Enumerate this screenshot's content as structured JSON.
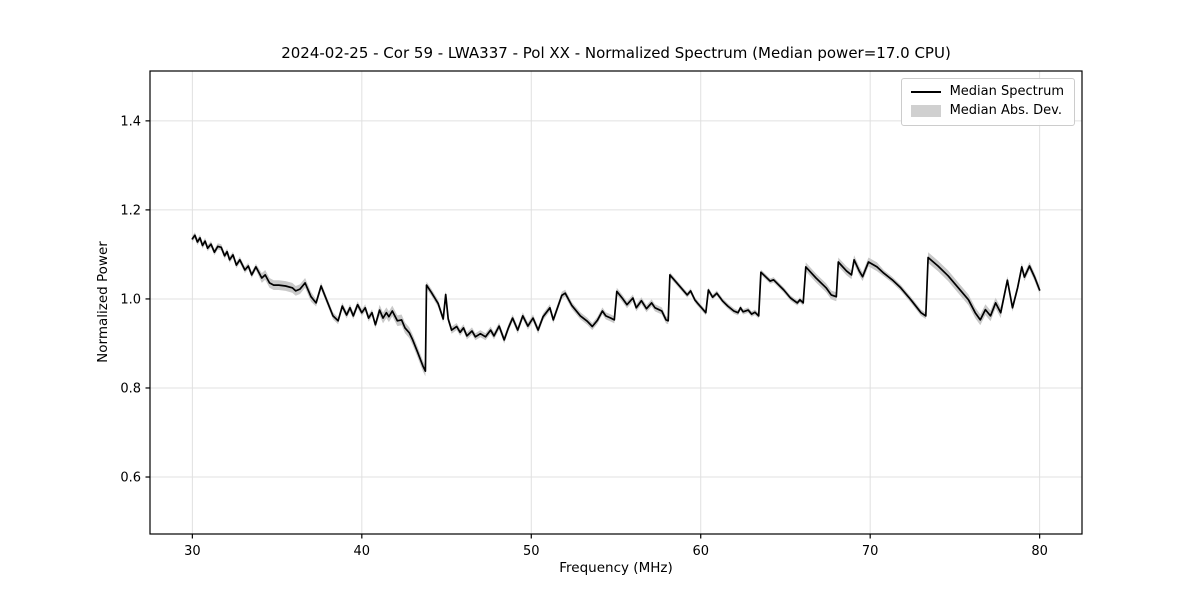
{
  "chart_data": {
    "type": "line",
    "title": "2024-02-25 - Cor 59 - LWA337 - Pol XX - Normalized Spectrum (Median power=17.0 CPU)",
    "xlabel": "Frequency (MHz)",
    "ylabel": "Normalized Power",
    "xlim": [
      27.5,
      82.5
    ],
    "ylim": [
      0.472,
      1.512
    ],
    "xticks": [
      30,
      40,
      50,
      60,
      70,
      80
    ],
    "yticks": [
      0.6,
      0.8,
      1.0,
      1.2,
      1.4
    ],
    "grid": true,
    "legend_position": "upper right",
    "colors": {
      "line": "#000000",
      "band": "#c9c9c9",
      "grid": "#e0e0e0",
      "spine": "#000000",
      "tick_label": "#000000",
      "legend_border": "#cccccc",
      "background": "#ffffff"
    },
    "legend": {
      "entries": [
        {
          "label": "Median Spectrum",
          "type": "line",
          "color": "#000000"
        },
        {
          "label": "Median Abs. Dev.",
          "type": "patch",
          "color": "#d0d0d0"
        }
      ]
    },
    "series": [
      {
        "name": "Median Spectrum",
        "points": [
          [
            30.0,
            1.135
          ],
          [
            30.15,
            1.143
          ],
          [
            30.3,
            1.128
          ],
          [
            30.45,
            1.137
          ],
          [
            30.6,
            1.12
          ],
          [
            30.75,
            1.13
          ],
          [
            30.9,
            1.114
          ],
          [
            31.1,
            1.123
          ],
          [
            31.3,
            1.105
          ],
          [
            31.5,
            1.118
          ],
          [
            31.7,
            1.116
          ],
          [
            31.9,
            1.097
          ],
          [
            32.05,
            1.106
          ],
          [
            32.2,
            1.088
          ],
          [
            32.4,
            1.099
          ],
          [
            32.6,
            1.076
          ],
          [
            32.8,
            1.088
          ],
          [
            33.1,
            1.065
          ],
          [
            33.3,
            1.074
          ],
          [
            33.5,
            1.054
          ],
          [
            33.75,
            1.072
          ],
          [
            34.1,
            1.047
          ],
          [
            34.3,
            1.054
          ],
          [
            34.55,
            1.036
          ],
          [
            34.8,
            1.031
          ],
          [
            35.1,
            1.031
          ],
          [
            35.5,
            1.029
          ],
          [
            35.9,
            1.025
          ],
          [
            36.1,
            1.018
          ],
          [
            36.35,
            1.022
          ],
          [
            36.65,
            1.036
          ],
          [
            37.0,
            1.005
          ],
          [
            37.3,
            0.991
          ],
          [
            37.6,
            1.029
          ],
          [
            37.9,
            1.0
          ],
          [
            38.3,
            0.962
          ],
          [
            38.6,
            0.951
          ],
          [
            38.85,
            0.984
          ],
          [
            39.1,
            0.964
          ],
          [
            39.3,
            0.98
          ],
          [
            39.5,
            0.962
          ],
          [
            39.75,
            0.987
          ],
          [
            40.0,
            0.969
          ],
          [
            40.2,
            0.98
          ],
          [
            40.4,
            0.957
          ],
          [
            40.6,
            0.969
          ],
          [
            40.8,
            0.942
          ],
          [
            41.05,
            0.975
          ],
          [
            41.25,
            0.957
          ],
          [
            41.45,
            0.969
          ],
          [
            41.6,
            0.96
          ],
          [
            41.8,
            0.973
          ],
          [
            42.1,
            0.951
          ],
          [
            42.35,
            0.953
          ],
          [
            42.55,
            0.935
          ],
          [
            42.8,
            0.924
          ],
          [
            43.0,
            0.908
          ],
          [
            43.3,
            0.88
          ],
          [
            43.6,
            0.85
          ],
          [
            43.75,
            0.838
          ],
          [
            43.82,
            1.031
          ],
          [
            44.1,
            1.015
          ],
          [
            44.5,
            0.99
          ],
          [
            44.8,
            0.955
          ],
          [
            44.95,
            1.01
          ],
          [
            45.1,
            0.955
          ],
          [
            45.3,
            0.93
          ],
          [
            45.6,
            0.938
          ],
          [
            45.8,
            0.925
          ],
          [
            46.0,
            0.935
          ],
          [
            46.2,
            0.917
          ],
          [
            46.5,
            0.928
          ],
          [
            46.7,
            0.915
          ],
          [
            47.0,
            0.922
          ],
          [
            47.3,
            0.915
          ],
          [
            47.6,
            0.93
          ],
          [
            47.8,
            0.917
          ],
          [
            48.1,
            0.939
          ],
          [
            48.4,
            0.908
          ],
          [
            48.65,
            0.935
          ],
          [
            48.9,
            0.957
          ],
          [
            49.2,
            0.93
          ],
          [
            49.5,
            0.962
          ],
          [
            49.8,
            0.939
          ],
          [
            50.1,
            0.957
          ],
          [
            50.4,
            0.93
          ],
          [
            50.7,
            0.96
          ],
          [
            51.1,
            0.98
          ],
          [
            51.3,
            0.953
          ],
          [
            51.8,
            1.008
          ],
          [
            52.0,
            1.013
          ],
          [
            52.4,
            0.985
          ],
          [
            52.9,
            0.962
          ],
          [
            53.3,
            0.95
          ],
          [
            53.6,
            0.938
          ],
          [
            53.9,
            0.952
          ],
          [
            54.2,
            0.973
          ],
          [
            54.4,
            0.962
          ],
          [
            54.7,
            0.957
          ],
          [
            54.9,
            0.953
          ],
          [
            55.05,
            1.017
          ],
          [
            55.4,
            1.0
          ],
          [
            55.65,
            0.987
          ],
          [
            56.0,
            1.002
          ],
          [
            56.2,
            0.98
          ],
          [
            56.5,
            0.996
          ],
          [
            56.8,
            0.978
          ],
          [
            57.1,
            0.991
          ],
          [
            57.3,
            0.98
          ],
          [
            57.7,
            0.973
          ],
          [
            57.95,
            0.953
          ],
          [
            58.08,
            0.951
          ],
          [
            58.18,
            1.054
          ],
          [
            58.7,
            1.031
          ],
          [
            59.2,
            1.009
          ],
          [
            59.4,
            1.018
          ],
          [
            59.65,
            0.998
          ],
          [
            59.8,
            0.991
          ],
          [
            60.05,
            0.98
          ],
          [
            60.3,
            0.969
          ],
          [
            60.45,
            1.02
          ],
          [
            60.7,
            1.004
          ],
          [
            60.95,
            1.013
          ],
          [
            61.3,
            0.995
          ],
          [
            61.6,
            0.984
          ],
          [
            61.95,
            0.973
          ],
          [
            62.2,
            0.969
          ],
          [
            62.35,
            0.98
          ],
          [
            62.5,
            0.971
          ],
          [
            62.8,
            0.975
          ],
          [
            63.0,
            0.966
          ],
          [
            63.2,
            0.97
          ],
          [
            63.42,
            0.962
          ],
          [
            63.55,
            1.06
          ],
          [
            64.1,
            1.04
          ],
          [
            64.3,
            1.043
          ],
          [
            64.9,
            1.02
          ],
          [
            65.3,
            1.002
          ],
          [
            65.7,
            0.991
          ],
          [
            65.85,
            0.998
          ],
          [
            66.05,
            0.991
          ],
          [
            66.2,
            1.072
          ],
          [
            66.8,
            1.047
          ],
          [
            67.4,
            1.025
          ],
          [
            67.7,
            1.009
          ],
          [
            68.0,
            1.005
          ],
          [
            68.12,
            1.083
          ],
          [
            68.6,
            1.063
          ],
          [
            68.9,
            1.054
          ],
          [
            69.05,
            1.088
          ],
          [
            69.35,
            1.063
          ],
          [
            69.55,
            1.05
          ],
          [
            69.9,
            1.083
          ],
          [
            70.4,
            1.072
          ],
          [
            70.8,
            1.058
          ],
          [
            71.3,
            1.043
          ],
          [
            71.8,
            1.025
          ],
          [
            72.4,
            0.998
          ],
          [
            73.0,
            0.969
          ],
          [
            73.28,
            0.962
          ],
          [
            73.42,
            1.093
          ],
          [
            74.0,
            1.074
          ],
          [
            74.6,
            1.052
          ],
          [
            75.2,
            1.025
          ],
          [
            75.8,
            0.998
          ],
          [
            76.2,
            0.969
          ],
          [
            76.5,
            0.953
          ],
          [
            76.8,
            0.976
          ],
          [
            77.1,
            0.962
          ],
          [
            77.4,
            0.991
          ],
          [
            77.7,
            0.969
          ],
          [
            78.1,
            1.042
          ],
          [
            78.4,
            0.98
          ],
          [
            78.7,
            1.025
          ],
          [
            78.95,
            1.072
          ],
          [
            79.1,
            1.049
          ],
          [
            79.4,
            1.074
          ],
          [
            79.7,
            1.049
          ],
          [
            80.0,
            1.02
          ]
        ]
      },
      {
        "name": "Median Abs. Dev.",
        "band_halfwidth_regions": [
          {
            "from": 30.0,
            "to": 33.8,
            "half": 0.007
          },
          {
            "from": 33.8,
            "to": 37.2,
            "half": 0.011
          },
          {
            "from": 37.2,
            "to": 40.9,
            "half": 0.008
          },
          {
            "from": 40.9,
            "to": 43.81,
            "half": 0.012
          },
          {
            "from": 43.81,
            "to": 58.1,
            "half": 0.008
          },
          {
            "from": 58.1,
            "to": 66.1,
            "half": 0.006
          },
          {
            "from": 66.1,
            "to": 70.5,
            "half": 0.01
          },
          {
            "from": 70.5,
            "to": 73.35,
            "half": 0.007
          },
          {
            "from": 73.35,
            "to": 78.0,
            "half": 0.012
          },
          {
            "from": 78.0,
            "to": 80.0,
            "half": 0.009
          }
        ]
      }
    ]
  }
}
